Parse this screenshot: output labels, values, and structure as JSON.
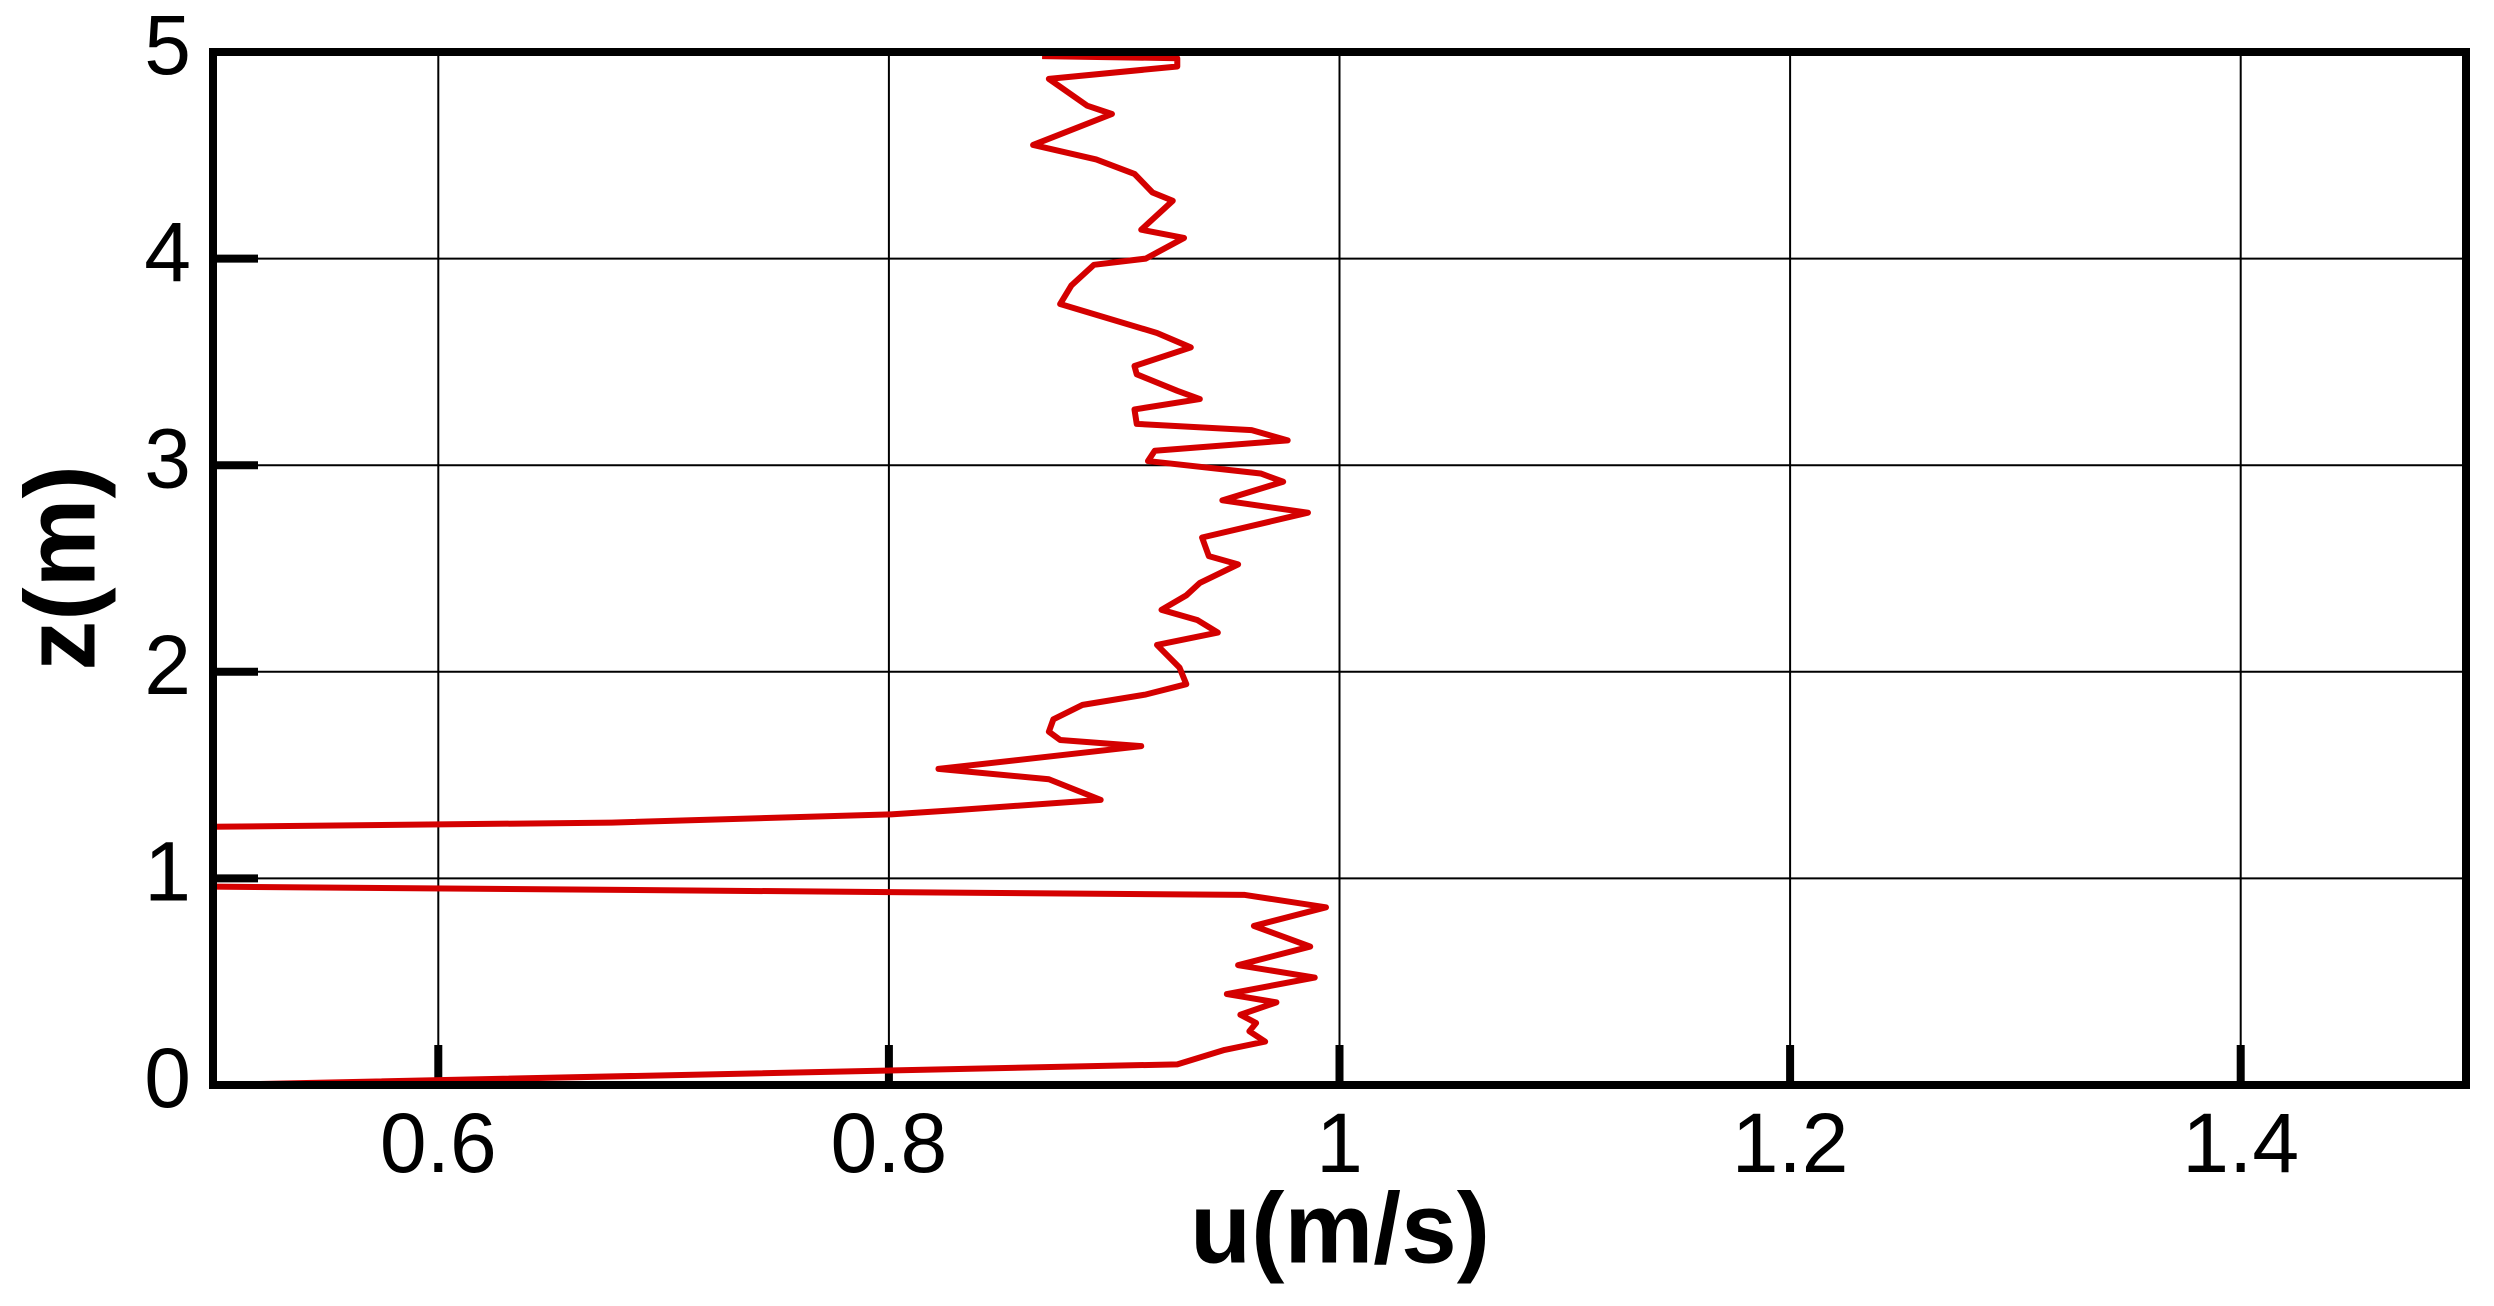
{
  "chart_data": {
    "type": "line",
    "xlabel": "u(m/s)",
    "ylabel": "z(m)",
    "xlim": [
      0.5,
      1.5
    ],
    "xticks": [
      0.6,
      0.8,
      1,
      1.2,
      1.4
    ],
    "ylim": [
      0,
      5
    ],
    "yticks": [
      0,
      1,
      2,
      3,
      4,
      5
    ],
    "grid": true,
    "series": [
      {
        "color": "#d40000",
        "x": [
          0.5,
          0.928,
          0.949,
          0.967,
          0.96,
          0.963,
          0.956,
          0.972,
          0.95,
          0.989,
          0.955,
          0.987,
          0.962,
          0.994,
          0.958,
          0.5,
          null,
          0.5,
          0.677,
          0.801,
          0.829,
          0.894,
          0.871,
          0.822,
          0.912,
          0.876,
          0.871,
          0.873,
          0.886,
          0.914,
          0.932,
          0.929,
          0.919,
          0.946,
          0.937,
          0.921,
          0.932,
          0.938,
          0.955,
          0.942,
          0.939,
          0.986,
          0.948,
          0.975,
          0.965,
          0.915,
          0.918,
          0.977,
          0.961,
          0.91,
          0.909,
          0.938,
          0.928,
          0.91,
          0.909,
          0.934,
          0.919,
          0.876,
          0.881,
          0.891,
          0.914,
          0.931,
          0.912,
          0.926,
          0.917,
          0.909,
          0.892,
          0.864,
          0.899,
          0.888,
          0.871,
          0.928,
          0.928,
          0.868
        ],
        "values": [
          0,
          0.1,
          0.17,
          0.21,
          0.26,
          0.3,
          0.34,
          0.4,
          0.44,
          0.52,
          0.58,
          0.67,
          0.77,
          0.86,
          0.92,
          0.96,
          null,
          1.25,
          1.27,
          1.31,
          1.33,
          1.38,
          1.48,
          1.53,
          1.64,
          1.67,
          1.71,
          1.77,
          1.84,
          1.89,
          1.94,
          2.02,
          2.13,
          2.19,
          2.25,
          2.3,
          2.37,
          2.43,
          2.52,
          2.56,
          2.65,
          2.77,
          2.83,
          2.92,
          2.96,
          3.02,
          3.07,
          3.12,
          3.17,
          3.2,
          3.27,
          3.32,
          3.36,
          3.44,
          3.48,
          3.57,
          3.64,
          3.78,
          3.87,
          3.97,
          4.0,
          4.1,
          4.14,
          4.28,
          4.32,
          4.41,
          4.48,
          4.55,
          4.7,
          4.74,
          4.87,
          4.93,
          4.97,
          4.98
        ]
      }
    ]
  }
}
